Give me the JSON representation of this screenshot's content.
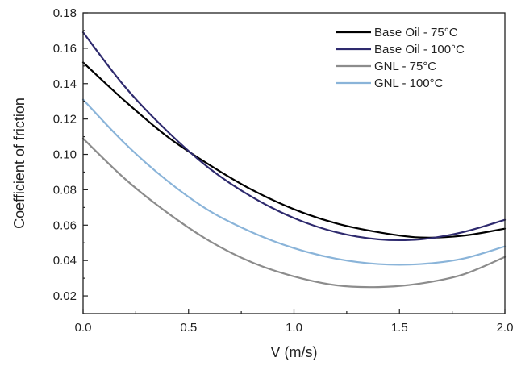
{
  "chart_data": {
    "type": "line",
    "title": "",
    "xlabel": "V (m/s)",
    "ylabel": "Coefficient of friction",
    "xlim": [
      0.0,
      2.0
    ],
    "ylim": [
      0.01,
      0.18
    ],
    "xticks": [
      0.0,
      0.5,
      1.0,
      1.5,
      2.0
    ],
    "xtick_labels": [
      "0.0",
      "0.5",
      "1.0",
      "1.5",
      "2.0"
    ],
    "yticks": [
      0.02,
      0.04,
      0.06,
      0.08,
      0.1,
      0.12,
      0.14,
      0.16,
      0.18
    ],
    "ytick_labels": [
      "0.02",
      "0.04",
      "0.06",
      "0.08",
      "0.10",
      "0.12",
      "0.14",
      "0.16",
      "0.18"
    ],
    "grid": false,
    "legend_position": "top-right",
    "x": [
      0.0,
      0.2,
      0.4,
      0.6,
      0.8,
      1.0,
      1.2,
      1.4,
      1.6,
      1.8,
      2.0
    ],
    "series": [
      {
        "name": "Base Oil - 75°C",
        "color": "#000000",
        "values": [
          0.152,
          0.13,
          0.11,
          0.094,
          0.08,
          0.069,
          0.061,
          0.056,
          0.053,
          0.054,
          0.058
        ]
      },
      {
        "name": "Base Oil - 100°C",
        "color": "#2e2a6e",
        "values": [
          0.169,
          0.138,
          0.113,
          0.092,
          0.076,
          0.064,
          0.056,
          0.052,
          0.052,
          0.056,
          0.063
        ]
      },
      {
        "name": "GNL - 75°C",
        "color": "#8c8c8c",
        "values": [
          0.109,
          0.086,
          0.067,
          0.051,
          0.039,
          0.031,
          0.026,
          0.025,
          0.027,
          0.032,
          0.042
        ]
      },
      {
        "name": "GNL - 100°C",
        "color": "#8ab4d9",
        "values": [
          0.131,
          0.106,
          0.085,
          0.068,
          0.056,
          0.047,
          0.041,
          0.038,
          0.038,
          0.041,
          0.048
        ]
      }
    ]
  }
}
